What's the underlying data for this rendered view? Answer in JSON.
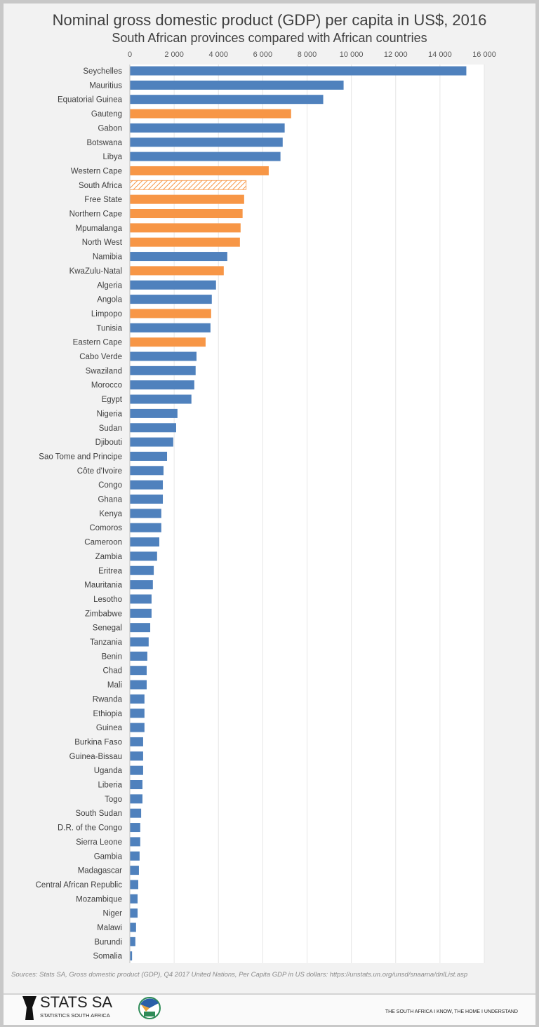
{
  "chart_data": {
    "type": "bar",
    "orientation": "horizontal",
    "title": "Nominal gross domestic product (GDP) per capita in US$, 2016",
    "subtitle": "South African provinces compared with African countries",
    "xlim": [
      0,
      16000
    ],
    "ticks": [
      "0",
      "2 000",
      "4 000",
      "6 000",
      "8 000",
      "10 000",
      "12 000",
      "14 000",
      "16 000"
    ],
    "tick_values": [
      0,
      2000,
      4000,
      6000,
      8000,
      10000,
      12000,
      14000,
      16000
    ],
    "grid": true,
    "colors": {
      "country": "#4f81bd",
      "province": "#f79646",
      "national": "#f79646"
    },
    "categories": [
      "Seychelles",
      "Mauritius",
      "Equatorial Guinea",
      "Gauteng",
      "Gabon",
      "Botswana",
      "Libya",
      "Western Cape",
      "South Africa",
      "Free State",
      "Northern Cape",
      "Mpumalanga",
      "North West",
      "Namibia",
      "KwaZulu-Natal",
      "Algeria",
      "Angola",
      "Limpopo",
      "Tunisia",
      "Eastern Cape",
      "Cabo Verde",
      "Swaziland",
      "Morocco",
      "Egypt",
      "Nigeria",
      "Sudan",
      "Djibouti",
      "Sao Tome and Principe",
      "Côte d'Ivoire",
      "Congo",
      "Ghana",
      "Kenya",
      "Comoros",
      "Cameroon",
      "Zambia",
      "Eritrea",
      "Mauritania",
      "Lesotho",
      "Zimbabwe",
      "Senegal",
      "Tanzania",
      "Benin",
      "Chad",
      "Mali",
      "Rwanda",
      "Ethiopia",
      "Guinea",
      "Burkina Faso",
      "Guinea-Bissau",
      "Uganda",
      "Liberia",
      "Togo",
      "South Sudan",
      "D.R. of the Congo",
      "Sierra Leone",
      "Gambia",
      "Madagascar",
      "Central African Republic",
      "Mozambique",
      "Niger",
      "Malawi",
      "Burundi",
      "Somalia"
    ],
    "values": [
      15190,
      9650,
      8730,
      7280,
      6990,
      6900,
      6800,
      6270,
      5250,
      5160,
      5090,
      5000,
      4970,
      4400,
      4240,
      3890,
      3700,
      3670,
      3640,
      3420,
      3010,
      2970,
      2910,
      2780,
      2150,
      2090,
      1960,
      1680,
      1520,
      1490,
      1490,
      1420,
      1420,
      1330,
      1230,
      1080,
      1040,
      980,
      980,
      920,
      850,
      790,
      760,
      760,
      660,
      660,
      660,
      600,
      600,
      600,
      570,
      570,
      510,
      470,
      470,
      440,
      410,
      380,
      350,
      350,
      280,
      250,
      100
    ],
    "kinds": [
      "country",
      "country",
      "country",
      "province",
      "country",
      "country",
      "country",
      "province",
      "national",
      "province",
      "province",
      "province",
      "province",
      "country",
      "province",
      "country",
      "country",
      "province",
      "country",
      "province",
      "country",
      "country",
      "country",
      "country",
      "country",
      "country",
      "country",
      "country",
      "country",
      "country",
      "country",
      "country",
      "country",
      "country",
      "country",
      "country",
      "country",
      "country",
      "country",
      "country",
      "country",
      "country",
      "country",
      "country",
      "country",
      "country",
      "country",
      "country",
      "country",
      "country",
      "country",
      "country",
      "country",
      "country",
      "country",
      "country",
      "country",
      "country",
      "country",
      "country",
      "country",
      "country",
      "country"
    ]
  },
  "sources": "Sources: Stats SA, Gross domestic product (GDP), Q4 2017    United Nations, Per Capita GDP in US dollars: https://unstats.un.org/unsd/snaama/dnlList.asp",
  "footer": {
    "logo_name": "STATS SA",
    "logo_sub": "STATISTICS SOUTH AFRICA",
    "ndp_logo": "NDP 2030",
    "slogan": "THE SOUTH AFRICA I KNOW, THE HOME I UNDERSTAND"
  }
}
